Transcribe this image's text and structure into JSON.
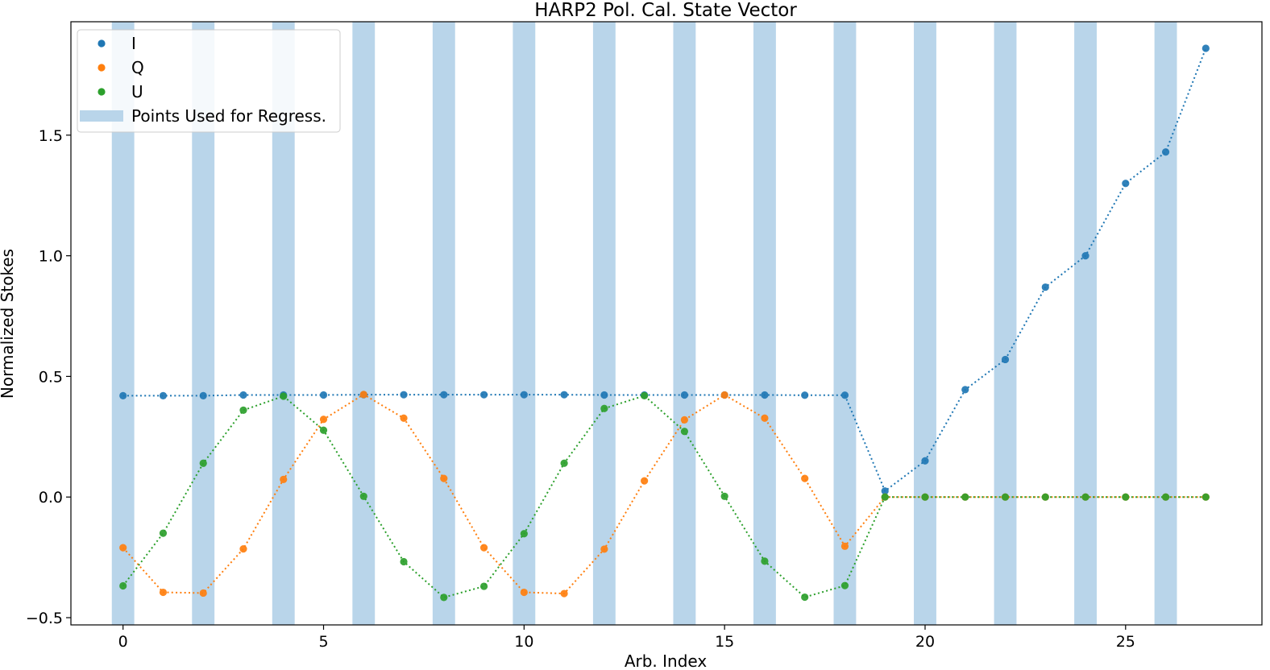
{
  "chart_data": {
    "type": "scatter",
    "title": "HARP2 Pol. Cal. State Vector",
    "xlabel": "Arb. Index",
    "ylabel": "Normalized Stokes",
    "xlim": [
      -1.3,
      28.4
    ],
    "ylim": [
      -0.53,
      1.97
    ],
    "xticks": [
      0,
      5,
      10,
      15,
      20,
      25
    ],
    "yticks": [
      -0.5,
      0.0,
      0.5,
      1.0,
      1.5
    ],
    "xtick_labels": [
      "0",
      "5",
      "10",
      "15",
      "20",
      "25"
    ],
    "ytick_labels": [
      "−0.5",
      "0.0",
      "0.5",
      "1.0",
      "1.5"
    ],
    "legend_position": "top-left",
    "regression_points": {
      "name": "Points Used for Regress.",
      "color": "#b9d5ea",
      "x": [
        0,
        2,
        4,
        6,
        8,
        10,
        12,
        14,
        16,
        18,
        20,
        22,
        24,
        26
      ]
    },
    "series": [
      {
        "name": "I",
        "color": "#1f77b4",
        "x": [
          0,
          1,
          2,
          3,
          4,
          5,
          6,
          7,
          8,
          9,
          10,
          11,
          12,
          13,
          14,
          15,
          16,
          17,
          18,
          19,
          20,
          21,
          22,
          23,
          24,
          25,
          26,
          27
        ],
        "values": [
          0.42,
          0.42,
          0.42,
          0.423,
          0.423,
          0.423,
          0.424,
          0.424,
          0.424,
          0.424,
          0.424,
          0.424,
          0.423,
          0.423,
          0.423,
          0.423,
          0.423,
          0.422,
          0.422,
          0.025,
          0.15,
          0.445,
          0.57,
          0.87,
          1.0,
          1.3,
          1.43,
          1.86
        ]
      },
      {
        "name": "Q",
        "color": "#ff7f0e",
        "x": [
          0,
          1,
          2,
          3,
          4,
          5,
          6,
          7,
          8,
          9,
          10,
          11,
          12,
          13,
          14,
          15,
          16,
          17,
          18,
          19,
          20,
          21,
          22,
          23,
          24,
          25,
          26,
          27
        ],
        "values": [
          -0.21,
          -0.395,
          -0.398,
          -0.215,
          0.073,
          0.322,
          0.425,
          0.327,
          0.077,
          -0.21,
          -0.395,
          -0.4,
          -0.216,
          0.067,
          0.32,
          0.423,
          0.327,
          0.077,
          -0.204,
          0.0,
          0.0,
          0.0,
          0.0,
          0.0,
          0.0,
          0.0,
          0.0,
          0.0
        ]
      },
      {
        "name": "U",
        "color": "#2ca02c",
        "x": [
          0,
          1,
          2,
          3,
          4,
          5,
          6,
          7,
          8,
          9,
          10,
          11,
          12,
          13,
          14,
          15,
          16,
          17,
          18,
          19,
          20,
          21,
          22,
          23,
          24,
          25,
          26,
          27
        ],
        "values": [
          -0.368,
          -0.15,
          0.14,
          0.36,
          0.418,
          0.277,
          0.003,
          -0.268,
          -0.416,
          -0.37,
          -0.152,
          0.14,
          0.367,
          0.42,
          0.272,
          0.003,
          -0.266,
          -0.415,
          -0.367,
          0.0,
          0.0,
          0.0,
          0.0,
          0.0,
          0.0,
          0.0,
          0.0,
          0.0
        ]
      }
    ]
  }
}
